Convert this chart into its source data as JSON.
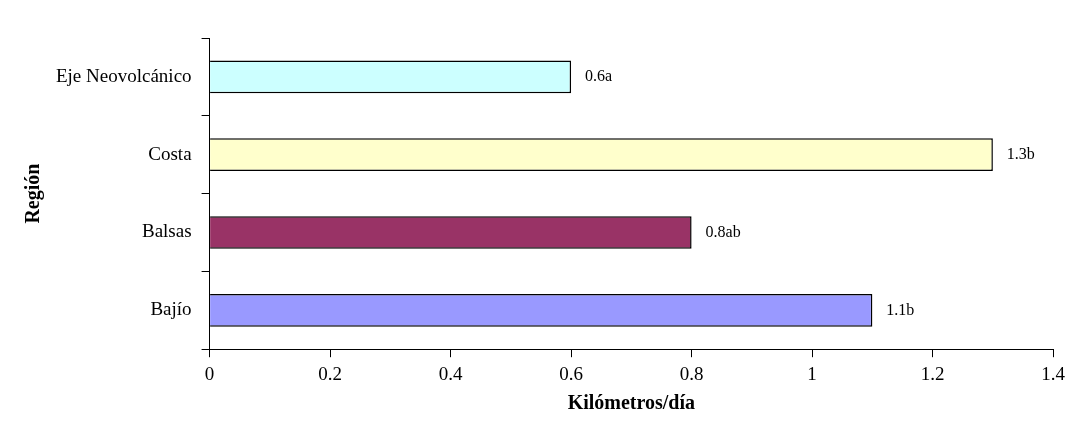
{
  "chart_data": {
    "type": "bar",
    "orientation": "horizontal",
    "xlabel": "Kilómetros/día",
    "ylabel": "Región",
    "categories": [
      "Eje Neovolcánico",
      "Costa",
      "Balsas",
      "Bajío"
    ],
    "values": [
      0.6,
      1.3,
      0.8,
      1.1
    ],
    "colors": [
      "#ccffff",
      "#ffffcc",
      "#993366",
      "#9999ff"
    ],
    "value_labels": [
      "0.6a",
      "1.3b",
      "0.8ab",
      "1.1b"
    ],
    "xlim": [
      0,
      1.4
    ],
    "xticks": [
      0,
      0.2,
      0.4,
      0.6,
      0.8,
      1,
      1.2,
      1.4
    ],
    "grid": false,
    "legend": false
  }
}
